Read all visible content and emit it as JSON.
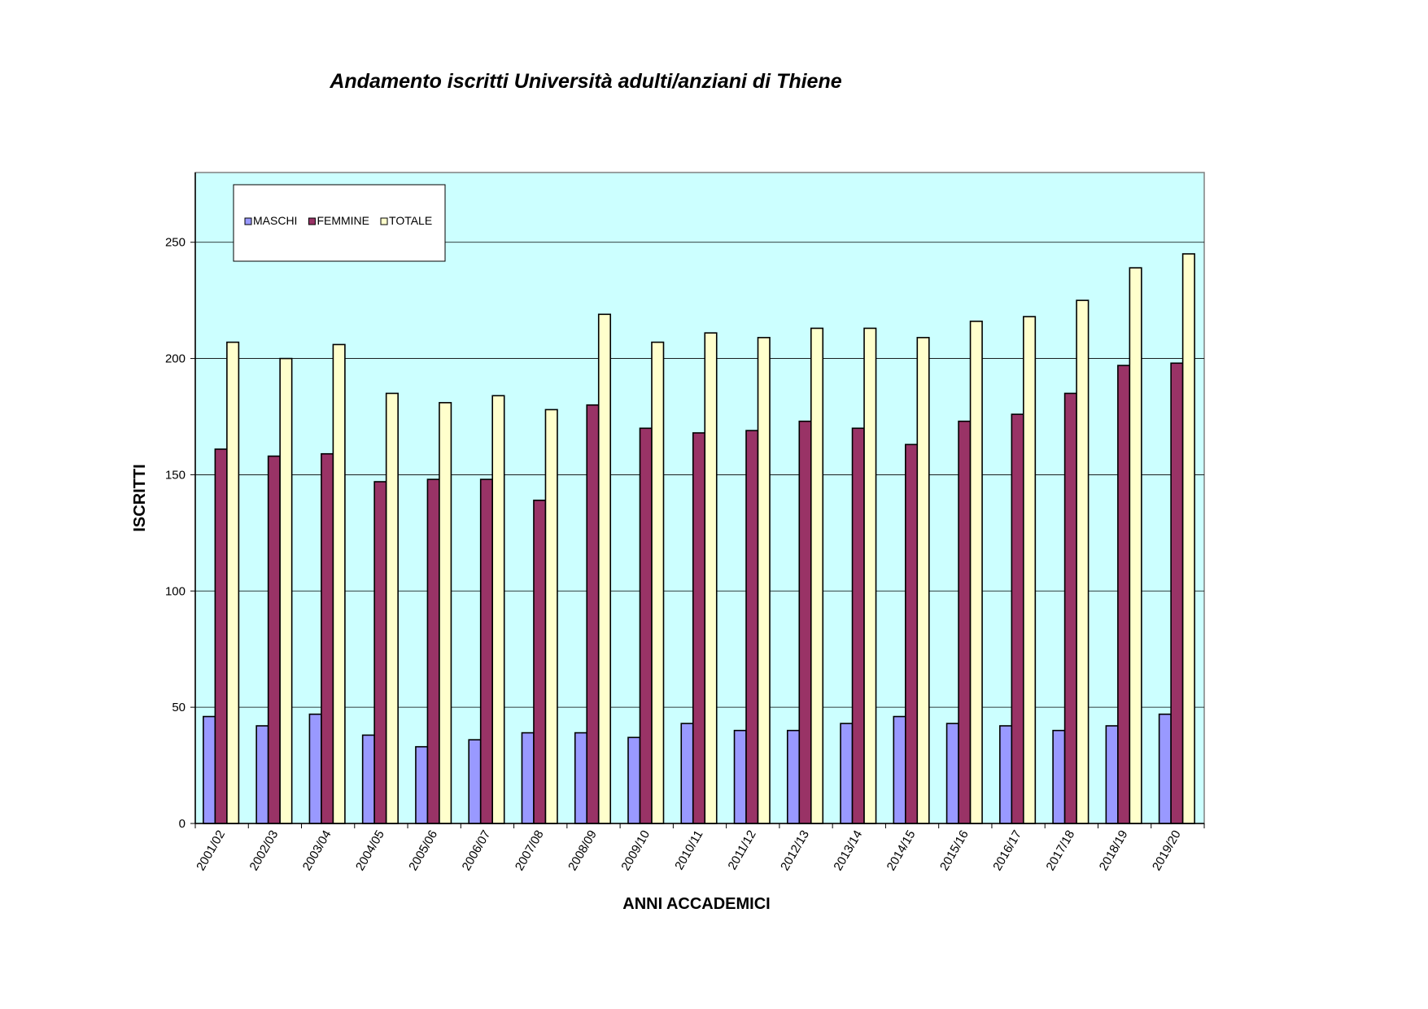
{
  "chart_data": {
    "type": "bar",
    "title": "Andamento iscritti Università adulti/anziani di Thiene",
    "xlabel": "ANNI ACCADEMICI",
    "ylabel": "ISCRITTI",
    "ylim": [
      0,
      280
    ],
    "yticks": [
      0,
      50,
      100,
      150,
      200,
      250
    ],
    "grid": true,
    "legend_position": "top-left",
    "categories": [
      "2001/02",
      "2002/03",
      "2003/04",
      "2004/05",
      "2005/06",
      "2006/07",
      "2007/08",
      "2008/09",
      "2009/10",
      "2010/11",
      "2011/12",
      "2012/13",
      "2013/14",
      "2014/15",
      "2015/16",
      "2016/17",
      "2017/18",
      "2018/19",
      "2019/20"
    ],
    "series": [
      {
        "name": "MASCHI",
        "color": "#9999ff",
        "values": [
          46,
          42,
          47,
          38,
          33,
          36,
          39,
          39,
          37,
          43,
          40,
          40,
          43,
          46,
          43,
          42,
          40,
          42,
          47
        ]
      },
      {
        "name": "FEMMINE",
        "color": "#993366",
        "values": [
          161,
          158,
          159,
          147,
          148,
          148,
          139,
          180,
          170,
          168,
          169,
          173,
          170,
          163,
          173,
          176,
          185,
          197,
          198
        ]
      },
      {
        "name": "TOTALE",
        "color": "#ffffcc",
        "values": [
          207,
          200,
          206,
          185,
          181,
          184,
          178,
          219,
          207,
          211,
          209,
          213,
          213,
          209,
          216,
          218,
          225,
          239,
          245
        ]
      }
    ],
    "colors": {
      "plot_background": "#ccffff",
      "gridline": "#000000",
      "bar_outline": "#000000"
    }
  }
}
